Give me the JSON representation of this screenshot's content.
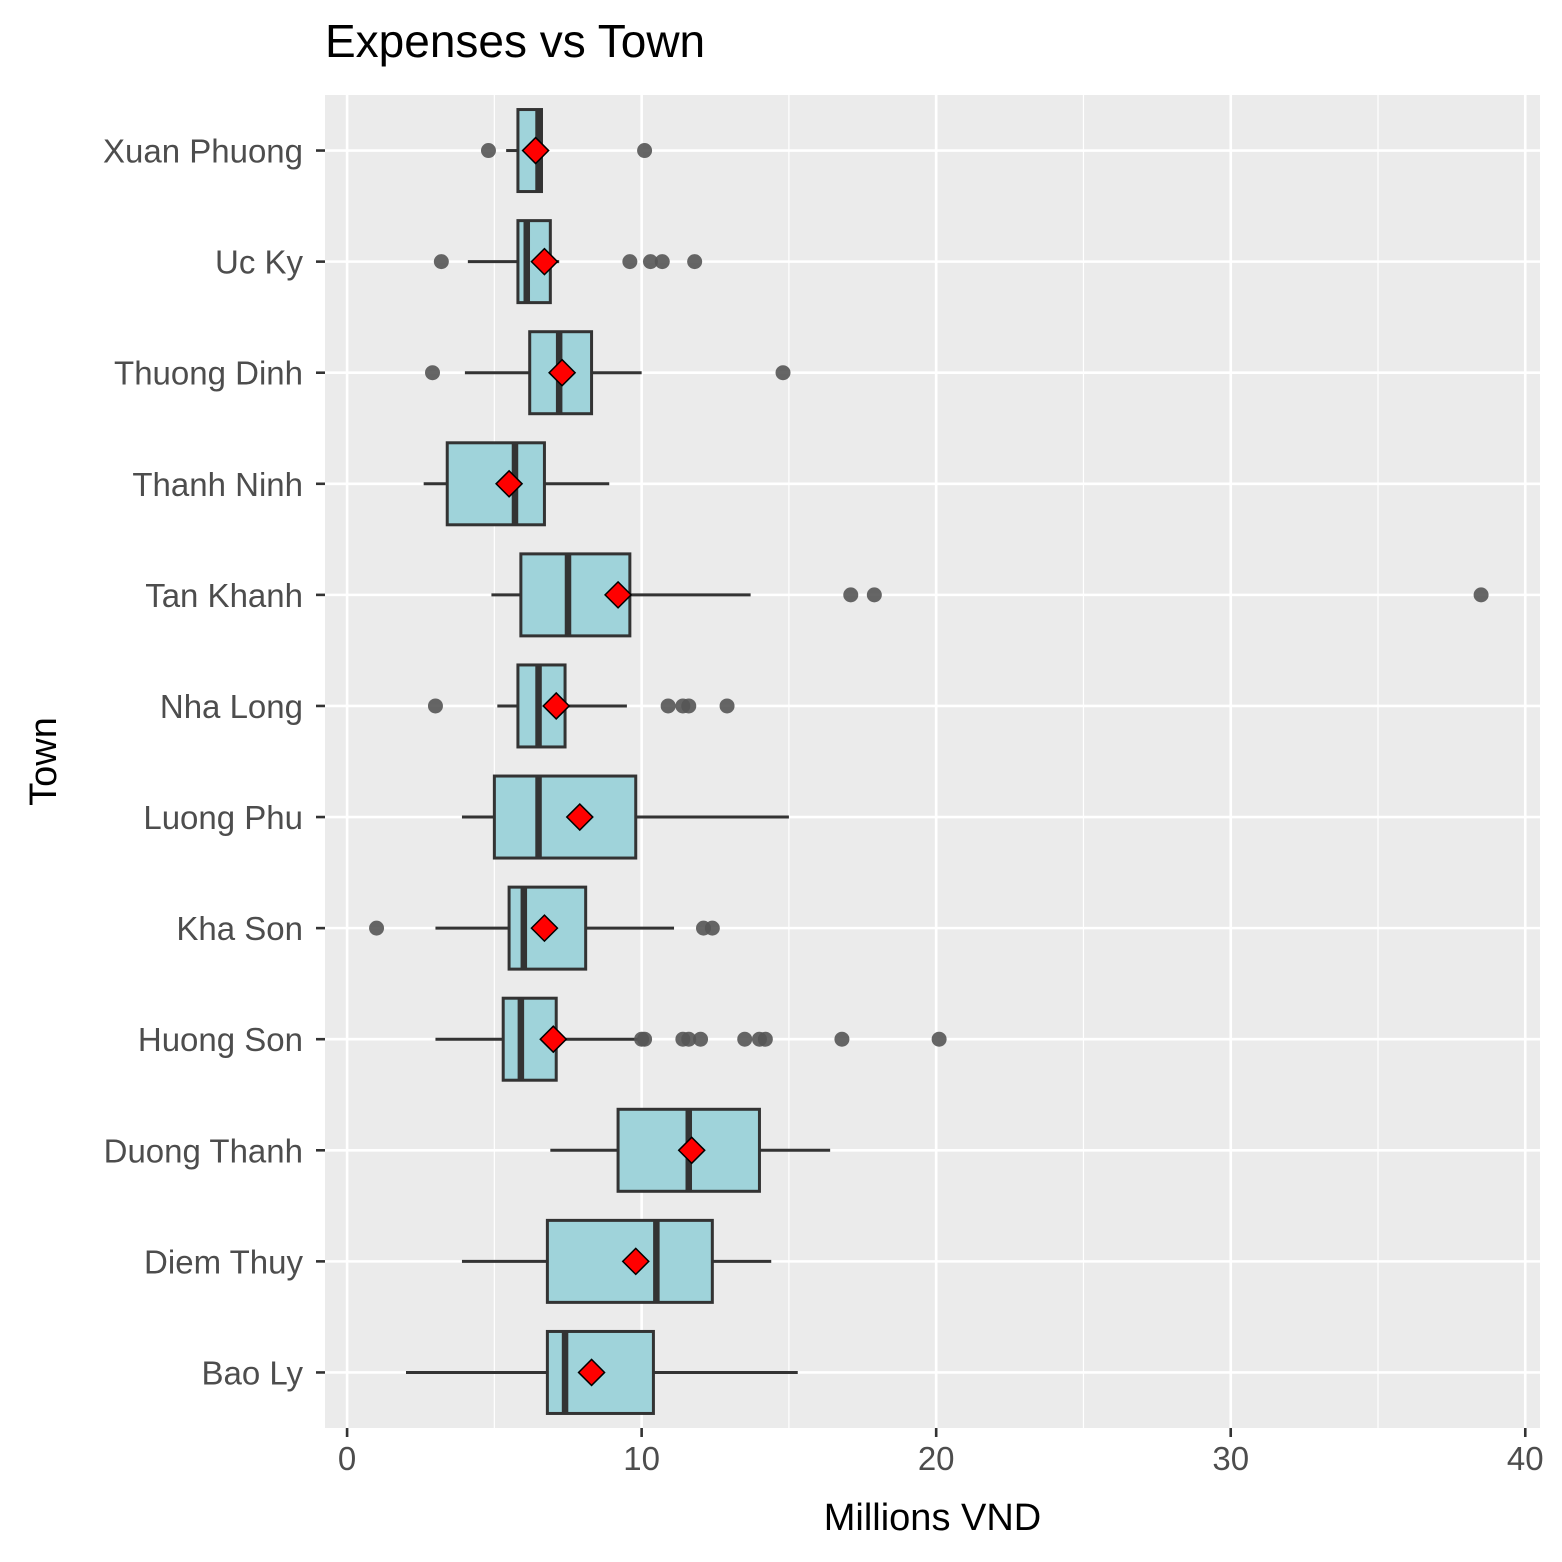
{
  "chart_data": {
    "type": "boxplot",
    "title": "Expenses vs Town",
    "xlabel": "Millions VND",
    "ylabel": "Town",
    "xlim": [
      -0.75,
      40.5
    ],
    "x_ticks": [
      0,
      10,
      20,
      30,
      40
    ],
    "grid": true,
    "orientation": "horizontal",
    "colors": {
      "panel": "#ebebeb",
      "grid": "#ffffff",
      "box_fill": "#9fd3da",
      "box_stroke": "#333333",
      "outlier": "#555555",
      "mean_marker": "#ff0000"
    },
    "groups": [
      {
        "name": "Bao Ly",
        "whisker_low": 2.0,
        "q1": 6.8,
        "median": 7.4,
        "q3": 10.4,
        "whisker_high": 15.3,
        "mean": 8.3,
        "outliers": []
      },
      {
        "name": "Diem Thuy",
        "whisker_low": 3.9,
        "q1": 6.8,
        "median": 10.5,
        "q3": 12.4,
        "whisker_high": 14.4,
        "mean": 9.8,
        "outliers": []
      },
      {
        "name": "Duong Thanh",
        "whisker_low": 6.9,
        "q1": 9.2,
        "median": 11.6,
        "q3": 14.0,
        "whisker_high": 16.4,
        "mean": 11.7,
        "outliers": []
      },
      {
        "name": "Huong Son",
        "whisker_low": 3.0,
        "q1": 5.3,
        "median": 5.9,
        "q3": 7.1,
        "whisker_high": 9.9,
        "mean": 7.0,
        "outliers": [
          10.0,
          10.1,
          11.4,
          11.6,
          12.0,
          13.5,
          14.0,
          14.2,
          16.8,
          20.1
        ]
      },
      {
        "name": "Kha Son",
        "whisker_low": 3.0,
        "q1": 5.5,
        "median": 6.0,
        "q3": 8.1,
        "whisker_high": 11.1,
        "mean": 6.7,
        "outliers": [
          1.0,
          12.1,
          12.4
        ]
      },
      {
        "name": "Luong Phu",
        "whisker_low": 3.9,
        "q1": 5.0,
        "median": 6.5,
        "q3": 9.8,
        "whisker_high": 15.0,
        "mean": 7.9,
        "outliers": []
      },
      {
        "name": "Nha Long",
        "whisker_low": 5.1,
        "q1": 5.8,
        "median": 6.5,
        "q3": 7.4,
        "whisker_high": 9.5,
        "mean": 7.1,
        "outliers": [
          3.0,
          10.9,
          11.4,
          11.6,
          12.9
        ]
      },
      {
        "name": "Tan Khanh",
        "whisker_low": 4.9,
        "q1": 5.9,
        "median": 7.5,
        "q3": 9.6,
        "whisker_high": 13.7,
        "mean": 9.2,
        "outliers": [
          17.1,
          17.9,
          38.5
        ]
      },
      {
        "name": "Thanh Ninh",
        "whisker_low": 2.6,
        "q1": 3.4,
        "median": 5.7,
        "q3": 6.7,
        "whisker_high": 8.9,
        "mean": 5.5,
        "outliers": []
      },
      {
        "name": "Thuong Dinh",
        "whisker_low": 4.0,
        "q1": 6.2,
        "median": 7.2,
        "q3": 8.3,
        "whisker_high": 10.0,
        "mean": 7.3,
        "outliers": [
          2.9,
          14.8
        ]
      },
      {
        "name": "Uc Ky",
        "whisker_low": 4.1,
        "q1": 5.8,
        "median": 6.1,
        "q3": 6.9,
        "whisker_high": 7.2,
        "mean": 6.7,
        "outliers": [
          3.2,
          9.6,
          10.3,
          10.7,
          11.8
        ]
      },
      {
        "name": "Xuan Phuong",
        "whisker_low": 5.4,
        "q1": 5.8,
        "median": 6.5,
        "q3": 6.6,
        "whisker_high": 6.6,
        "mean": 6.4,
        "outliers": [
          4.8,
          10.1
        ]
      }
    ]
  }
}
